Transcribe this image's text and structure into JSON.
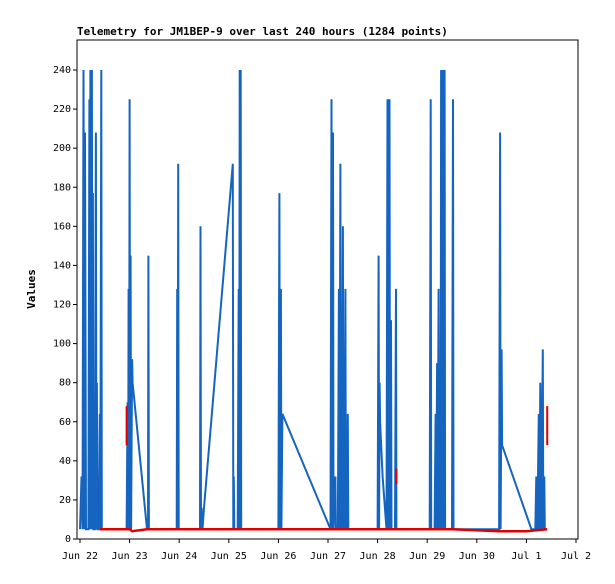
{
  "chart_data": {
    "type": "line",
    "title": "Telemetry for JM1BEP-9 over last 240 hours (1284 points)",
    "xlabel": "",
    "ylabel": "Values",
    "x_ticks": [
      "Jun 22",
      "Jun 23",
      "Jun 24",
      "Jun 25",
      "Jun 26",
      "Jun 27",
      "Jun 28",
      "Jun 29",
      "Jun 30",
      "Jul 1",
      "Jul 2"
    ],
    "y_ticks": [
      0,
      20,
      40,
      60,
      80,
      100,
      120,
      140,
      160,
      180,
      200,
      220,
      240
    ],
    "ylim": [
      0,
      240
    ],
    "xlim_days": [
      0,
      10
    ],
    "grid": false,
    "series": [
      {
        "color": "#1565c0",
        "points": [
          [
            0.0,
            5
          ],
          [
            0.03,
            32
          ],
          [
            0.05,
            5
          ],
          [
            0.07,
            240
          ],
          [
            0.09,
            5
          ],
          [
            0.1,
            208
          ],
          [
            0.12,
            5
          ],
          [
            0.17,
            5
          ],
          [
            0.19,
            225
          ],
          [
            0.2,
            5
          ],
          [
            0.21,
            240
          ],
          [
            0.22,
            5
          ],
          [
            0.24,
            240
          ],
          [
            0.25,
            5
          ],
          [
            0.26,
            177
          ],
          [
            0.27,
            5
          ],
          [
            0.3,
            5
          ],
          [
            0.32,
            208
          ],
          [
            0.33,
            5
          ],
          [
            0.34,
            80
          ],
          [
            0.35,
            5
          ],
          [
            0.38,
            5
          ],
          [
            0.4,
            64
          ],
          [
            0.41,
            5
          ],
          [
            0.43,
            240
          ],
          [
            0.44,
            5
          ],
          [
            0.94,
            5
          ],
          [
            0.96,
            70
          ],
          [
            0.97,
            5
          ],
          [
            0.98,
            128
          ],
          [
            0.99,
            5
          ],
          [
            1.0,
            225
          ],
          [
            1.01,
            5
          ],
          [
            1.02,
            145
          ],
          [
            1.03,
            5
          ],
          [
            1.05,
            92
          ],
          [
            1.06,
            80
          ],
          [
            1.35,
            5
          ],
          [
            1.37,
            5
          ],
          [
            1.38,
            145
          ],
          [
            1.39,
            5
          ],
          [
            1.95,
            5
          ],
          [
            1.96,
            128
          ],
          [
            1.97,
            5
          ],
          [
            1.98,
            192
          ],
          [
            1.99,
            5
          ],
          [
            2.42,
            5
          ],
          [
            2.43,
            160
          ],
          [
            2.44,
            5
          ],
          [
            2.45,
            16
          ],
          [
            2.47,
            5
          ],
          [
            2.5,
            16
          ],
          [
            3.08,
            192
          ],
          [
            3.09,
            5
          ],
          [
            3.1,
            32
          ],
          [
            3.11,
            5
          ],
          [
            3.18,
            5
          ],
          [
            3.2,
            128
          ],
          [
            3.21,
            5
          ],
          [
            3.22,
            240
          ],
          [
            3.23,
            5
          ],
          [
            3.24,
            240
          ],
          [
            3.25,
            5
          ],
          [
            4.0,
            5
          ],
          [
            4.02,
            177
          ],
          [
            4.03,
            5
          ],
          [
            4.05,
            128
          ],
          [
            4.06,
            5
          ],
          [
            4.08,
            64
          ],
          [
            5.05,
            5
          ],
          [
            5.07,
            225
          ],
          [
            5.08,
            5
          ],
          [
            5.1,
            208
          ],
          [
            5.11,
            5
          ],
          [
            5.15,
            32
          ],
          [
            5.16,
            5
          ],
          [
            5.2,
            5
          ],
          [
            5.22,
            128
          ],
          [
            5.23,
            5
          ],
          [
            5.25,
            192
          ],
          [
            5.26,
            5
          ],
          [
            5.28,
            5
          ],
          [
            5.3,
            160
          ],
          [
            5.31,
            5
          ],
          [
            5.33,
            5
          ],
          [
            5.35,
            128
          ],
          [
            5.36,
            5
          ],
          [
            5.38,
            5
          ],
          [
            5.4,
            64
          ],
          [
            5.41,
            5
          ],
          [
            6.0,
            5
          ],
          [
            6.02,
            145
          ],
          [
            6.03,
            5
          ],
          [
            6.04,
            80
          ],
          [
            6.05,
            60
          ],
          [
            6.1,
            32
          ],
          [
            6.18,
            5
          ],
          [
            6.2,
            225
          ],
          [
            6.21,
            5
          ],
          [
            6.22,
            112
          ],
          [
            6.23,
            5
          ],
          [
            6.24,
            225
          ],
          [
            6.25,
            5
          ],
          [
            6.27,
            112
          ],
          [
            6.28,
            5
          ],
          [
            6.35,
            5
          ],
          [
            6.37,
            128
          ],
          [
            6.38,
            5
          ],
          [
            7.05,
            5
          ],
          [
            7.07,
            225
          ],
          [
            7.08,
            5
          ],
          [
            7.15,
            5
          ],
          [
            7.17,
            64
          ],
          [
            7.18,
            5
          ],
          [
            7.2,
            90
          ],
          [
            7.21,
            5
          ],
          [
            7.23,
            128
          ],
          [
            7.24,
            5
          ],
          [
            7.26,
            32
          ],
          [
            7.27,
            5
          ],
          [
            7.28,
            240
          ],
          [
            7.29,
            5
          ],
          [
            7.3,
            192
          ],
          [
            7.31,
            5
          ],
          [
            7.32,
            240
          ],
          [
            7.33,
            5
          ],
          [
            7.35,
            240
          ],
          [
            7.36,
            5
          ],
          [
            7.5,
            5
          ],
          [
            7.52,
            225
          ],
          [
            7.53,
            5
          ],
          [
            8.45,
            5
          ],
          [
            8.47,
            208
          ],
          [
            8.48,
            5
          ],
          [
            8.5,
            97
          ],
          [
            8.51,
            48
          ],
          [
            9.1,
            5
          ],
          [
            9.18,
            5
          ],
          [
            9.2,
            32
          ],
          [
            9.22,
            5
          ],
          [
            9.25,
            64
          ],
          [
            9.26,
            5
          ],
          [
            9.28,
            80
          ],
          [
            9.3,
            5
          ],
          [
            9.33,
            97
          ],
          [
            9.34,
            5
          ],
          [
            9.36,
            32
          ],
          [
            9.37,
            5
          ],
          [
            9.41,
            5
          ]
        ]
      },
      {
        "color": "#e00000",
        "points": [
          [
            0.4,
            5
          ],
          [
            1.0,
            5
          ],
          [
            1.05,
            4
          ],
          [
            1.35,
            5
          ],
          [
            2.0,
            5
          ],
          [
            3.2,
            5
          ],
          [
            4.0,
            5
          ],
          [
            4.1,
            5
          ],
          [
            5.05,
            5
          ],
          [
            6.15,
            5
          ],
          [
            6.3,
            5
          ],
          [
            7.05,
            5
          ],
          [
            7.5,
            5
          ],
          [
            8.45,
            4
          ],
          [
            9.0,
            4
          ],
          [
            9.42,
            5
          ]
        ],
        "spikes": [
          [
            0.94,
            48,
            68
          ],
          [
            6.38,
            28,
            36
          ],
          [
            9.42,
            48,
            68
          ]
        ]
      }
    ]
  }
}
